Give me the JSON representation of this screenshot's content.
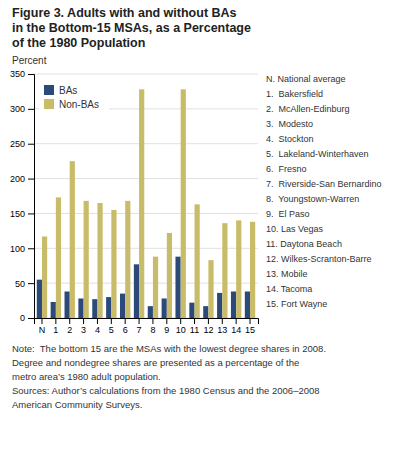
{
  "chart_data": {
    "type": "bar",
    "title": [
      "Figure 3. Adults with and without BAs",
      "in the Bottom-15 MSAs, as a Percentage",
      "of the 1980 Population"
    ],
    "y_label": "Percent",
    "categories": [
      "N",
      "1",
      "2",
      "3",
      "4",
      "5",
      "6",
      "7",
      "8",
      "9",
      "10",
      "11",
      "12",
      "13",
      "14",
      "15"
    ],
    "series": [
      {
        "name": "BAs",
        "color": "#2b4a7a",
        "values": [
          55,
          23,
          38,
          28,
          27,
          30,
          35,
          77,
          17,
          28,
          88,
          22,
          17,
          36,
          38,
          38
        ]
      },
      {
        "name": "Non-BAs",
        "color": "#c8bc6a",
        "values": [
          117,
          173,
          225,
          168,
          165,
          155,
          168,
          328,
          88,
          122,
          328,
          163,
          83,
          136,
          140,
          138
        ]
      }
    ],
    "ylim": [
      0,
      350
    ],
    "yticks": [
      0,
      50,
      100,
      150,
      200,
      250,
      300,
      350
    ],
    "grid": true,
    "legend": "top-left",
    "annotations": [
      "N. National average",
      "1.  Bakersfield",
      "2.  McAllen-Edinburg",
      "3.  Modesto",
      "4.  Stockton",
      "5.  Lakeland-Winterhaven",
      "6.  Fresno",
      "7.  Riverside-San Bernardino",
      "8.  Youngstown-Warren",
      "9.  El Paso",
      "10. Las Vegas",
      "11. Daytona Beach",
      "12. Wilkes-Scranton-Barre",
      "13. Mobile",
      "14. Tacoma",
      "15. Fort Wayne"
    ],
    "note": [
      "Note:  The bottom 15 are the MSAs with the lowest degree shares in 2008.",
      "Degree and nondegree shares are presented as a percentage of the",
      "metro area’s 1980 adult population.",
      "Sources: Author’s calculations from the 1980 Census and the 2006–2008",
      "American Community Surveys."
    ]
  }
}
